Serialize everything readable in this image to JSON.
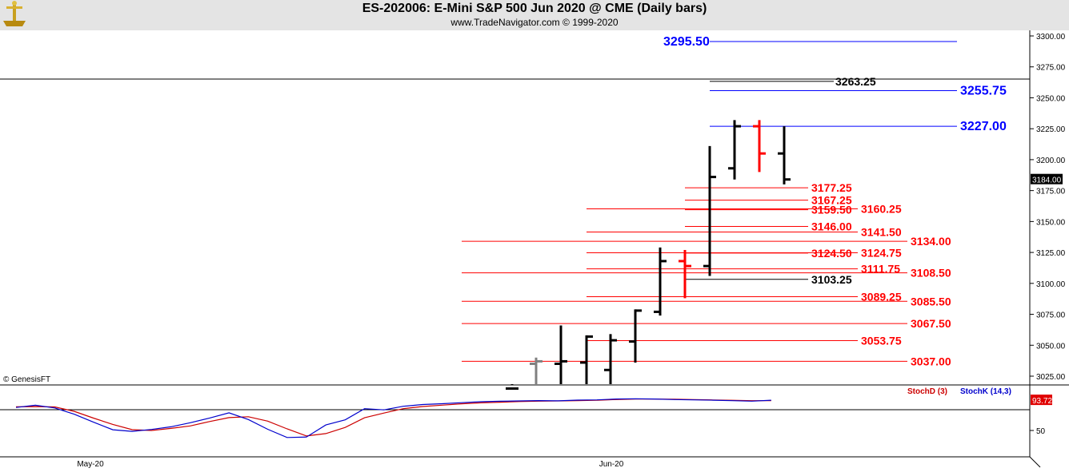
{
  "header": {
    "title": "ES-202006:  E-Mini S&P 500 Jun 2020 @ CME  (Daily bars)",
    "subtitle": "www.TradeNavigator.com © 1999-2020"
  },
  "watermark": "© GenesisFT",
  "chart_data": {
    "type": "bar",
    "bar_style": "OHLC",
    "price_axis": {
      "ylim": [
        3012,
        3306
      ],
      "ticks": [
        "3300.00",
        "3275.00",
        "3250.00",
        "3225.00",
        "3200.00",
        "3175.00",
        "3150.00",
        "3125.00",
        "3100.00",
        "3075.00",
        "3050.00",
        "3025.00"
      ],
      "last_price": "3184.00"
    },
    "x_labels": [
      "May-20",
      "Jun-20"
    ],
    "price_bars": [
      {
        "open": 3015,
        "high": 3018,
        "low": 3012,
        "close": 3015,
        "color": "#000000"
      },
      {
        "open": 3035,
        "high": 3040,
        "low": 3012,
        "close": 3037,
        "color": "#808080"
      },
      {
        "open": 3035,
        "high": 3066,
        "low": 3012,
        "close": 3037,
        "color": "#000000"
      },
      {
        "open": 3036,
        "high": 3058,
        "low": 3012,
        "close": 3057,
        "color": "#000000"
      },
      {
        "open": 3030,
        "high": 3059,
        "low": 3012,
        "close": 3054,
        "color": "#000000"
      },
      {
        "open": 3053,
        "high": 3079,
        "low": 3036,
        "close": 3078,
        "color": "#000000"
      },
      {
        "open": 3077,
        "high": 3129,
        "low": 3074,
        "close": 3118,
        "color": "#000000"
      },
      {
        "open": 3118,
        "high": 3127,
        "low": 3088,
        "close": 3114,
        "color": "#ff0000"
      },
      {
        "open": 3114,
        "high": 3211,
        "low": 3106,
        "close": 3186,
        "color": "#000000"
      },
      {
        "open": 3193,
        "high": 3232,
        "low": 3184,
        "close": 3227,
        "color": "#000000"
      },
      {
        "open": 3227,
        "high": 3232,
        "low": 3190,
        "close": 3205,
        "color": "#ff0000"
      },
      {
        "open": 3205,
        "high": 3227,
        "low": 3180,
        "close": 3184,
        "color": "#000000"
      }
    ],
    "levels": [
      {
        "label": "3295.50",
        "value": 3295.5,
        "color": "#0000ff",
        "size": "big"
      },
      {
        "label": "3263.25",
        "value": 3263.25,
        "color": "#000000",
        "size": "normal"
      },
      {
        "label": "3255.75",
        "value": 3255.75,
        "color": "#0000ff",
        "size": "big"
      },
      {
        "label": "3227.00",
        "value": 3227.0,
        "color": "#0000ff",
        "size": "big"
      },
      {
        "label": "3177.25",
        "value": 3177.25,
        "color": "#ff0000",
        "size": "normal"
      },
      {
        "label": "3167.25",
        "value": 3167.25,
        "color": "#ff0000",
        "size": "normal"
      },
      {
        "label": "3159.50",
        "value": 3159.5,
        "color": "#ff0000",
        "size": "normal"
      },
      {
        "label": "3160.25",
        "value": 3160.25,
        "color": "#ff0000",
        "size": "normal"
      },
      {
        "label": "3146.00",
        "value": 3146.0,
        "color": "#ff0000",
        "size": "normal"
      },
      {
        "label": "3141.50",
        "value": 3141.5,
        "color": "#ff0000",
        "size": "normal"
      },
      {
        "label": "3134.00",
        "value": 3134.0,
        "color": "#ff0000",
        "size": "normal"
      },
      {
        "label": "3124.50",
        "value": 3124.5,
        "color": "#ff0000",
        "size": "normal"
      },
      {
        "label": "3124.75",
        "value": 3124.75,
        "color": "#ff0000",
        "size": "normal"
      },
      {
        "label": "3111.75",
        "value": 3111.75,
        "color": "#ff0000",
        "size": "normal"
      },
      {
        "label": "3108.50",
        "value": 3108.5,
        "color": "#ff0000",
        "size": "normal"
      },
      {
        "label": "3103.25",
        "value": 3103.25,
        "color": "#000000",
        "size": "normal"
      },
      {
        "label": "3089.25",
        "value": 3089.25,
        "color": "#ff0000",
        "size": "normal"
      },
      {
        "label": "3085.50",
        "value": 3085.5,
        "color": "#ff0000",
        "size": "normal"
      },
      {
        "label": "3067.50",
        "value": 3067.5,
        "color": "#ff0000",
        "size": "normal"
      },
      {
        "label": "3053.75",
        "value": 3053.75,
        "color": "#ff0000",
        "size": "normal"
      },
      {
        "label": "3037.00",
        "value": 3037.0,
        "color": "#ff0000",
        "size": "normal"
      }
    ],
    "indicator": {
      "legend": [
        {
          "label": "StochD (3)",
          "color": "#cc0000"
        },
        {
          "label": "StochK (14,3)",
          "color": "#0000cc"
        }
      ],
      "ylim": [
        20,
        105
      ],
      "ticks": [
        "50"
      ],
      "reference_line": 80,
      "last_value": "93.72",
      "stoch_k": [
        83.2,
        86.5,
        82.5,
        73.5,
        62.0,
        51.0,
        48.7,
        51.5,
        55.3,
        61.2,
        68.0,
        75.5,
        65.8,
        51.7,
        39.8,
        40.5,
        58.0,
        65.3,
        81.5,
        79.8,
        85.0,
        87.5,
        88.7,
        90.2,
        91.5,
        92.2,
        92.7,
        93.2,
        92.8,
        93.8,
        94.2,
        95.5,
        95.8,
        95.5,
        94.7,
        94.2,
        93.7,
        93.0,
        92.4,
        93.7
      ],
      "stoch_d": [
        84.2,
        84.5,
        84.0,
        77.7,
        67.9,
        58.8,
        51.2,
        50.0,
        53.0,
        56.6,
        62.9,
        68.6,
        69.8,
        63.5,
        52.3,
        42.0,
        45.5,
        54.4,
        68.3,
        75.1,
        81.5,
        84.6,
        86.6,
        88.5,
        89.9,
        90.9,
        91.8,
        92.3,
        92.7,
        93.0,
        93.7,
        94.6,
        95.3,
        95.4,
        95.2,
        94.7,
        94.1,
        93.6,
        93.0,
        93.2
      ]
    }
  }
}
